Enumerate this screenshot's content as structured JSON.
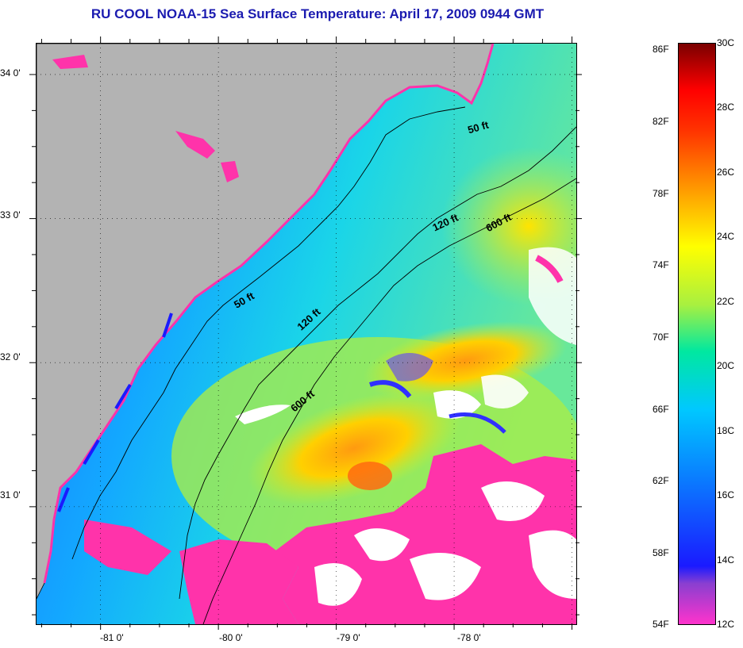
{
  "title": "RU COOL  NOAA-15  Sea Surface Temperature:  April 17, 2009 0944 GMT",
  "axes": {
    "lon_labels": [
      "-81 0'",
      "-80 0'",
      "-79 0'",
      "-78 0'"
    ],
    "lat_labels": [
      "34 0'",
      "33 0'",
      "32 0'",
      "31 0'"
    ],
    "lon_range": [
      -81.55,
      -76.97
    ],
    "lat_range": [
      30.19,
      34.22
    ],
    "lon_ticks": [
      -81,
      -80,
      -79,
      -78
    ],
    "lat_ticks": [
      34,
      33,
      32,
      31
    ]
  },
  "contours": {
    "c50": {
      "label": "50 ft"
    },
    "c120": {
      "label": "120 ft"
    },
    "c600": {
      "label": "600 ft"
    },
    "c50b": {
      "label": "50 ft"
    },
    "c120b": {
      "label": "120 ft"
    },
    "c600b": {
      "label": "600 ft"
    }
  },
  "colorbar": {
    "fahrenheit": [
      "86F",
      "82F",
      "78F",
      "74F",
      "70F",
      "66F",
      "62F",
      "58F",
      "54F"
    ],
    "celsius": [
      "30C",
      "28C",
      "26C",
      "24C",
      "22C",
      "20C",
      "18C",
      "16C",
      "14C",
      "12C"
    ],
    "colors": [
      "#ff33cc",
      "#8a3fd0",
      "#1a1aff",
      "#0a7cff",
      "#00c8ff",
      "#00e8a0",
      "#a8f040",
      "#ffff00",
      "#ff9900",
      "#ff3300",
      "#ff0000",
      "#7a0000"
    ]
  },
  "colors": {
    "land": "#b3b3b3",
    "cloud_mask": "#ff33aa",
    "title": "#1b1bb0"
  }
}
